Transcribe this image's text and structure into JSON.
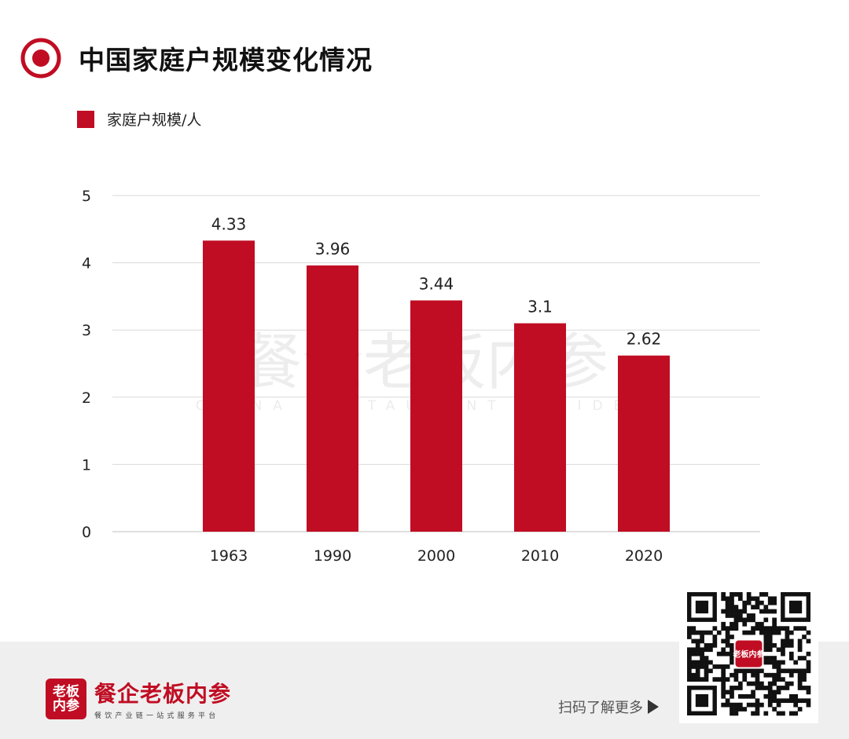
{
  "header": {
    "title": "中国家庭户规模变化情况"
  },
  "colors": {
    "accent": "#c00d23",
    "grid": "#d9d9d9",
    "footer_bg": "#efefef"
  },
  "chart_data": {
    "type": "bar",
    "title": "中国家庭户规模变化情况",
    "categories": [
      "1963",
      "1990",
      "2000",
      "2010",
      "2020"
    ],
    "series": [
      {
        "name": "家庭户规模/人",
        "values": [
          4.33,
          3.96,
          3.44,
          3.1,
          2.62
        ],
        "labels": [
          "4.33",
          "3.96",
          "3.44",
          "3.1",
          "2.62"
        ]
      }
    ],
    "ylim": [
      0,
      5
    ],
    "yticks": [
      "0",
      "1",
      "2",
      "3",
      "4",
      "5"
    ],
    "grid": true,
    "legend": "top-left",
    "xlabel": "",
    "ylabel": ""
  },
  "watermark": {
    "cn": "餐企老板内参",
    "en": "CHINA RESTAURANT INSIDER"
  },
  "footer": {
    "brand_badge_line1": "老板",
    "brand_badge_line2": "内参",
    "brand_name": "餐企老板内参",
    "slogan": "餐饮产业链一站式服务平台",
    "scan_text": "扫码了解更多",
    "qr_badge": "老板内参"
  }
}
